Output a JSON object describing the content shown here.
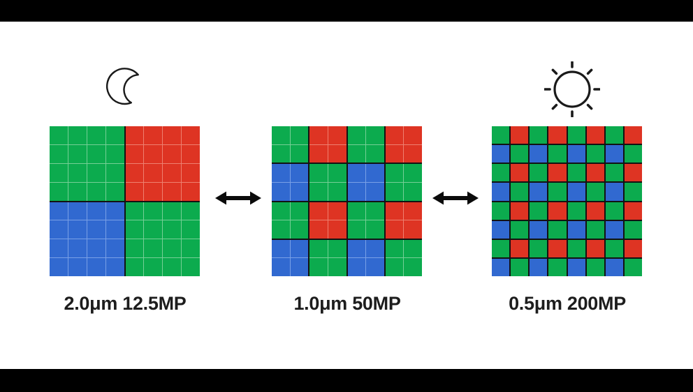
{
  "figure": {
    "description_icons": {
      "left_icon": "moon-icon",
      "right_icon": "sun-icon",
      "between_panels_icon": "double-headed-arrow-icon"
    },
    "background": "#000000",
    "canvas_background": "#ffffff"
  },
  "colors": {
    "G": "#0cab4e",
    "R": "#de3423",
    "B": "#3169d0",
    "G_light": "#76cf96",
    "R_light": "#ee8070",
    "B_light": "#79a0e6",
    "grid_gap_dark": "#121212",
    "icon_stroke": "#1a1a1a",
    "label_text": "#1d1d1d"
  },
  "panels": [
    {
      "label": "2.0μm 12.5MP",
      "icon": "moon",
      "block_size": 4,
      "blocks": [
        [
          "G",
          "R"
        ],
        [
          "B",
          "G"
        ]
      ]
    },
    {
      "label": "1.0μm 50MP",
      "icon": null,
      "block_size": 2,
      "blocks": [
        [
          "G",
          "R",
          "G",
          "R"
        ],
        [
          "B",
          "G",
          "B",
          "G"
        ],
        [
          "G",
          "R",
          "G",
          "R"
        ],
        [
          "B",
          "G",
          "B",
          "G"
        ]
      ]
    },
    {
      "label": "0.5μm 200MP",
      "icon": "sun",
      "block_size": 1,
      "blocks": [
        [
          "G",
          "R",
          "G",
          "R",
          "G",
          "R",
          "G",
          "R"
        ],
        [
          "B",
          "G",
          "B",
          "G",
          "B",
          "G",
          "B",
          "G"
        ],
        [
          "G",
          "R",
          "G",
          "R",
          "G",
          "R",
          "G",
          "R"
        ],
        [
          "B",
          "G",
          "B",
          "G",
          "B",
          "G",
          "B",
          "G"
        ],
        [
          "G",
          "R",
          "G",
          "R",
          "G",
          "R",
          "G",
          "R"
        ],
        [
          "B",
          "G",
          "B",
          "G",
          "B",
          "G",
          "B",
          "G"
        ],
        [
          "G",
          "R",
          "G",
          "R",
          "G",
          "R",
          "G",
          "R"
        ],
        [
          "B",
          "G",
          "B",
          "G",
          "B",
          "G",
          "B",
          "G"
        ]
      ]
    }
  ]
}
